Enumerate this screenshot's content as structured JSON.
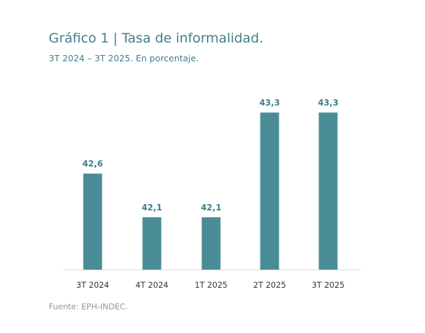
{
  "header": {
    "title": "Gráfico 1 | Tasa de informalidad.",
    "subtitle": "3T 2024 – 3T 2025. En porcentaje."
  },
  "footer": {
    "source": "Fuente: EPH-INDEC."
  },
  "colors": {
    "bar": "#4a8c96",
    "label": "#3f7f8a",
    "axis": "#d9dcdc",
    "tick": "#333333"
  },
  "chart_data": {
    "type": "bar",
    "title": "Gráfico 1 | Tasa de informalidad.",
    "subtitle": "3T 2024 – 3T 2025. En porcentaje.",
    "categories": [
      "3T 2024",
      "4T 2024",
      "1T 2025",
      "2T 2025",
      "3T 2025"
    ],
    "values": [
      42.6,
      42.1,
      42.1,
      43.3,
      43.3
    ],
    "data_labels": [
      "42,6",
      "42,1",
      "42,1",
      "43,3",
      "43,3"
    ],
    "xlabel": "",
    "ylabel": "",
    "ylim": [
      41.5,
      43.4
    ],
    "grid": false,
    "legend": "none"
  }
}
